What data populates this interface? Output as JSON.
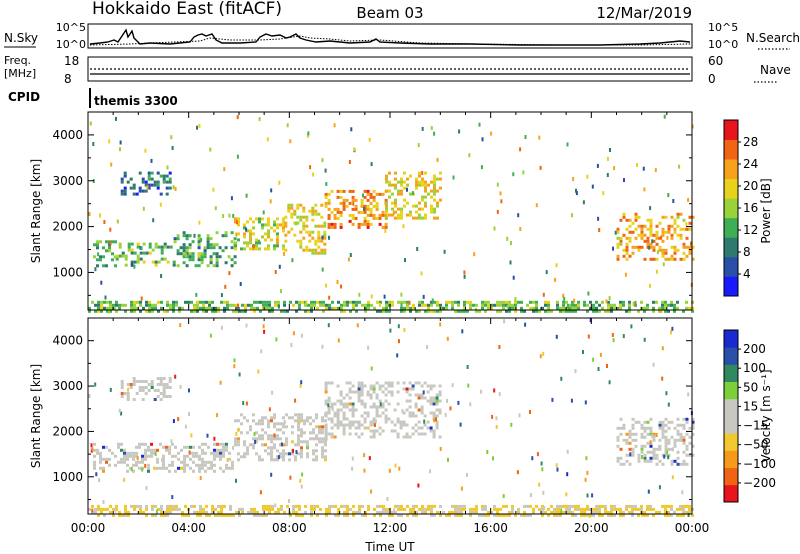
{
  "header": {
    "station": "Hokkaido East (fitACF)",
    "beam": "Beam 03",
    "date": "12/Mar/2019"
  },
  "summary_panels": {
    "nsky_label": "N.Sky",
    "nsearch_label": "N.Search",
    "left_ticks": [
      "10^5",
      "10^0"
    ],
    "right_ticks": [
      "10^5",
      "10^0"
    ],
    "freq_label": "Freq.",
    "freq_unit": "[MHz]",
    "freq_ticks": [
      "18",
      "8"
    ],
    "nave_label": "Nave",
    "nave_ticks": [
      "60",
      "0"
    ],
    "cpid_label": "CPID",
    "cpid_value": "themis 3300"
  },
  "colors": {
    "power_scale": [
      "#1a1aff",
      "#2a4fa8",
      "#2e7a6e",
      "#3fae55",
      "#9ad23a",
      "#e8d21c",
      "#f7a21c",
      "#f06414",
      "#e8141e"
    ],
    "velocity_scale": [
      "#e8141e",
      "#f06414",
      "#f79a1c",
      "#f0c830",
      "#c8c8c0",
      "#c8c8c0",
      "#7ccf3a",
      "#2e8a5e",
      "#2a4fa8",
      "#1a2ad0"
    ]
  },
  "chart_data": [
    {
      "type": "heatmap",
      "name": "power",
      "xlabel": "",
      "ylabel": "Slant Range [km]",
      "ylim": [
        180,
        4500
      ],
      "xlim_hours": [
        0,
        24
      ],
      "yticks": [
        1000,
        2000,
        3000,
        4000
      ],
      "colorbar": {
        "label": "Power [dB]",
        "ticks": [
          "4",
          "8",
          "12",
          "16",
          "20",
          "24",
          "28"
        ],
        "range": [
          0,
          32
        ]
      },
      "regions": [
        {
          "t0": 0.2,
          "t1": 1.1,
          "r0": 1150,
          "r1": 1700,
          "value": 12
        },
        {
          "t0": 1.1,
          "t1": 3.4,
          "r0": 1150,
          "r1": 1650,
          "value": 14
        },
        {
          "t0": 3.4,
          "t1": 5.8,
          "r0": 1150,
          "r1": 1900,
          "value": 12
        },
        {
          "t0": 5.8,
          "t1": 7.8,
          "r0": 1500,
          "r1": 2200,
          "value": 18
        },
        {
          "t0": 7.8,
          "t1": 9.4,
          "r0": 1400,
          "r1": 2500,
          "value": 20
        },
        {
          "t0": 9.4,
          "t1": 11.8,
          "r0": 2000,
          "r1": 2800,
          "value": 24
        },
        {
          "t0": 11.8,
          "t1": 14.0,
          "r0": 2200,
          "r1": 3200,
          "value": 20
        },
        {
          "t0": 1.3,
          "t1": 3.3,
          "r0": 2700,
          "r1": 3200,
          "value": 8
        },
        {
          "t0": 21.0,
          "t1": 24.0,
          "r0": 1300,
          "r1": 2300,
          "value": 22
        },
        {
          "t0": 0.0,
          "t1": 24.0,
          "r0": 180,
          "r1": 380,
          "value": 14
        }
      ]
    },
    {
      "type": "heatmap",
      "name": "velocity",
      "xlabel": "Time UT",
      "ylabel": "Slant Range [km]",
      "ylim": [
        180,
        4500
      ],
      "xlim_hours": [
        0,
        24
      ],
      "xticks": [
        "00:00",
        "04:00",
        "08:00",
        "12:00",
        "16:00",
        "20:00",
        "00:00"
      ],
      "yticks": [
        1000,
        2000,
        3000,
        4000
      ],
      "colorbar": {
        "label": "Velocity [m s⁻¹]",
        "ticks": [
          "-200",
          "-100",
          "-50",
          "-15",
          "15",
          "50",
          "100",
          "200"
        ],
        "range": [
          -250,
          250
        ]
      },
      "regions": [
        {
          "t0": 0.2,
          "t1": 5.8,
          "r0": 1150,
          "r1": 1750,
          "value": 0
        },
        {
          "t0": 5.8,
          "t1": 9.4,
          "r0": 1400,
          "r1": 2400,
          "value": 0
        },
        {
          "t0": 9.4,
          "t1": 14.0,
          "r0": 1900,
          "r1": 3100,
          "value": 0
        },
        {
          "t0": 1.3,
          "t1": 3.3,
          "r0": 2700,
          "r1": 3200,
          "value": 0
        },
        {
          "t0": 21.0,
          "t1": 24.0,
          "r0": 1300,
          "r1": 2300,
          "value": 0
        },
        {
          "t0": 0.0,
          "t1": 24.0,
          "r0": 180,
          "r1": 380,
          "value": -60
        }
      ]
    }
  ]
}
